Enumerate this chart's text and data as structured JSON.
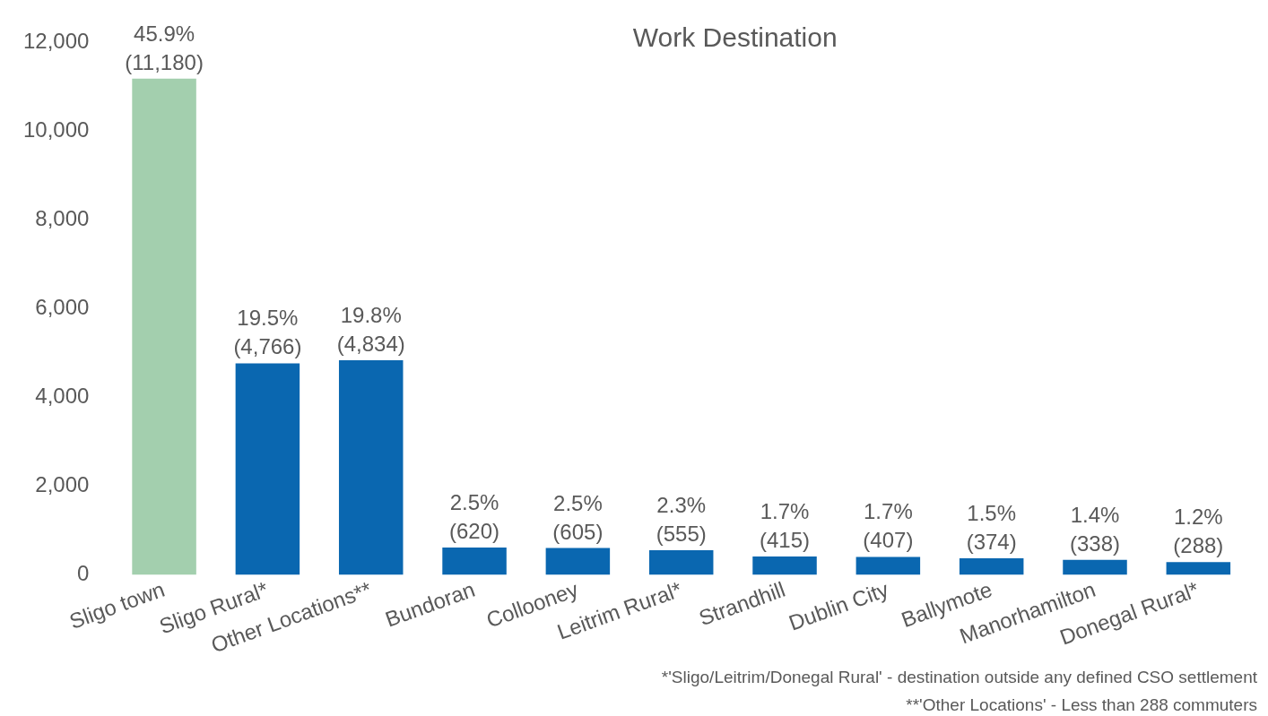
{
  "chart_data": {
    "type": "bar",
    "title": "Work Destination",
    "categories": [
      "Sligo town",
      "Sligo Rural*",
      "Other Locations**",
      "Bundoran",
      "Collooney",
      "Leitrim Rural*",
      "Strandhill",
      "Dublin City",
      "Ballymote",
      "Manorhamilton",
      "Donegal Rural*"
    ],
    "values": [
      11180,
      4766,
      4834,
      620,
      605,
      555,
      415,
      407,
      374,
      338,
      288
    ],
    "colors": [
      "#a3cfae",
      "#0a67b0",
      "#0a67b0",
      "#0a67b0",
      "#0a67b0",
      "#0a67b0",
      "#0a67b0",
      "#0a67b0",
      "#0a67b0",
      "#0a67b0",
      "#0a67b0"
    ],
    "value_labels": [
      "45.9%\n(11,180)",
      "19.5%\n(4,766)",
      "19.8%\n(4,834)",
      "2.5%\n(620)",
      "2.5%\n(605)",
      "2.3%\n(555)",
      "1.7%\n(415)",
      "1.7%\n(407)",
      "1.5%\n(374)",
      "1.4%\n(338)",
      "1.2%\n(288)"
    ],
    "ylim": [
      0,
      12000
    ],
    "yticks": [
      {
        "value": 0,
        "label": "0"
      },
      {
        "value": 2000,
        "label": "2,000"
      },
      {
        "value": 4000,
        "label": "4,000"
      },
      {
        "value": 6000,
        "label": "6,000"
      },
      {
        "value": 8000,
        "label": "8,000"
      },
      {
        "value": 10000,
        "label": "10,000"
      },
      {
        "value": 12000,
        "label": "12,000"
      }
    ],
    "grid": false,
    "legend": false,
    "annotations": [
      "*'Sligo/Leitrim/Donegal Rural' - destination outside any defined CSO settlement",
      "**'Other Locations' - Less than 288 commuters"
    ]
  }
}
